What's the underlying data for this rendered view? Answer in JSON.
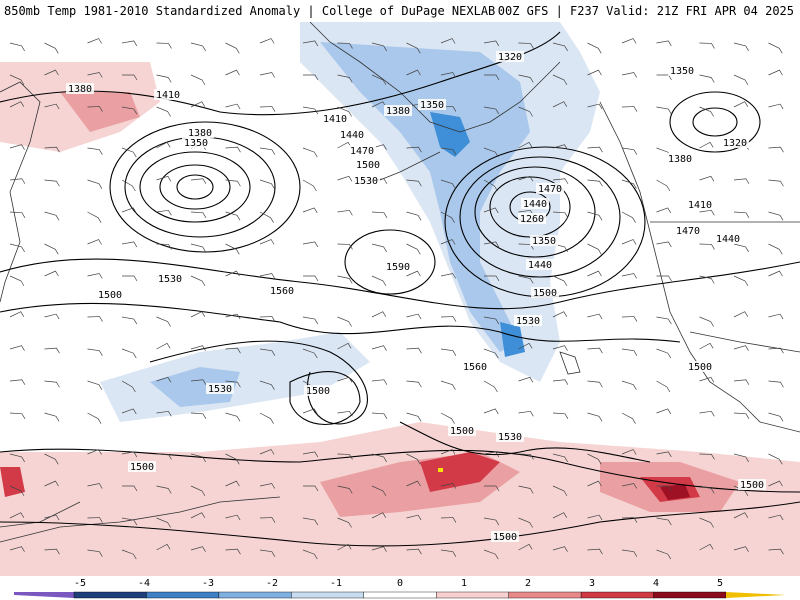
{
  "header": {
    "title": "850mb Temp 1981-2010 Standardized Anomaly | College of DuPage NEXLAB",
    "run_info": "00Z GFS | F237 Valid: 21Z FRI APR 04 2025"
  },
  "contour_labels": [
    "1380",
    "1410",
    "1380",
    "1350",
    "1410",
    "1440",
    "1470",
    "1500",
    "1530",
    "1350",
    "1380",
    "1320",
    "1350",
    "1380",
    "1320",
    "1410",
    "1470",
    "1440",
    "1470",
    "1440",
    "1260",
    "1350",
    "1440",
    "1500",
    "1530",
    "1590",
    "1530",
    "1560",
    "1500",
    "1530",
    "1560",
    "1500",
    "1530",
    "1500",
    "1500",
    "1500",
    "1500",
    "1500"
  ],
  "colorbar": {
    "ticks": [
      "-5",
      "-4",
      "-3",
      "-2",
      "-1",
      "0",
      "1",
      "2",
      "3",
      "4",
      "5"
    ],
    "colors": [
      "#7a58c0",
      "#1f3f7a",
      "#3f7fc4",
      "#7fb0e0",
      "#c8dcf0",
      "#ffffff",
      "#f7d0d0",
      "#e88a8a",
      "#cf3a44",
      "#8b0b1c",
      "#f0c000"
    ]
  },
  "anomaly_colors": {
    "blue_light": "#dbe6f4",
    "blue_mid": "#a9c8eb",
    "blue_dark": "#3f8fd8",
    "red_light": "#f6d4d4",
    "red_mid": "#eaa0a2",
    "red_dark": "#d23a48",
    "red_deep": "#9e1024",
    "yellow": "#f5e600"
  }
}
